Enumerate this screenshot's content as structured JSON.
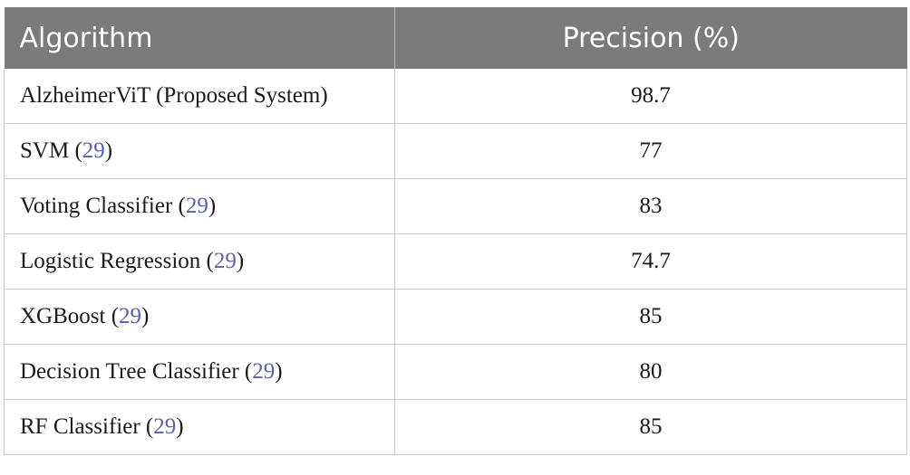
{
  "table": {
    "headers": {
      "algorithm": "Algorithm",
      "precision": "Precision (%)"
    },
    "rows": [
      {
        "name": "AlzheimerViT (Proposed System)",
        "ref": "",
        "value": "98.7"
      },
      {
        "name": "SVM",
        "ref": "29",
        "value": "77"
      },
      {
        "name": "Voting Classifier",
        "ref": "29",
        "value": "83"
      },
      {
        "name": "Logistic Regression",
        "ref": "29",
        "value": "74.7"
      },
      {
        "name": "XGBoost",
        "ref": "29",
        "value": "85"
      },
      {
        "name": "Decision Tree Classifier",
        "ref": "29",
        "value": "80"
      },
      {
        "name": "RF Classifier",
        "ref": "29",
        "value": "85"
      }
    ]
  },
  "colors": {
    "header_bg": "#7b7b7b",
    "header_text": "#ffffff",
    "reference_link": "#5b5fa8",
    "grid_line": "#c9c9c9"
  }
}
